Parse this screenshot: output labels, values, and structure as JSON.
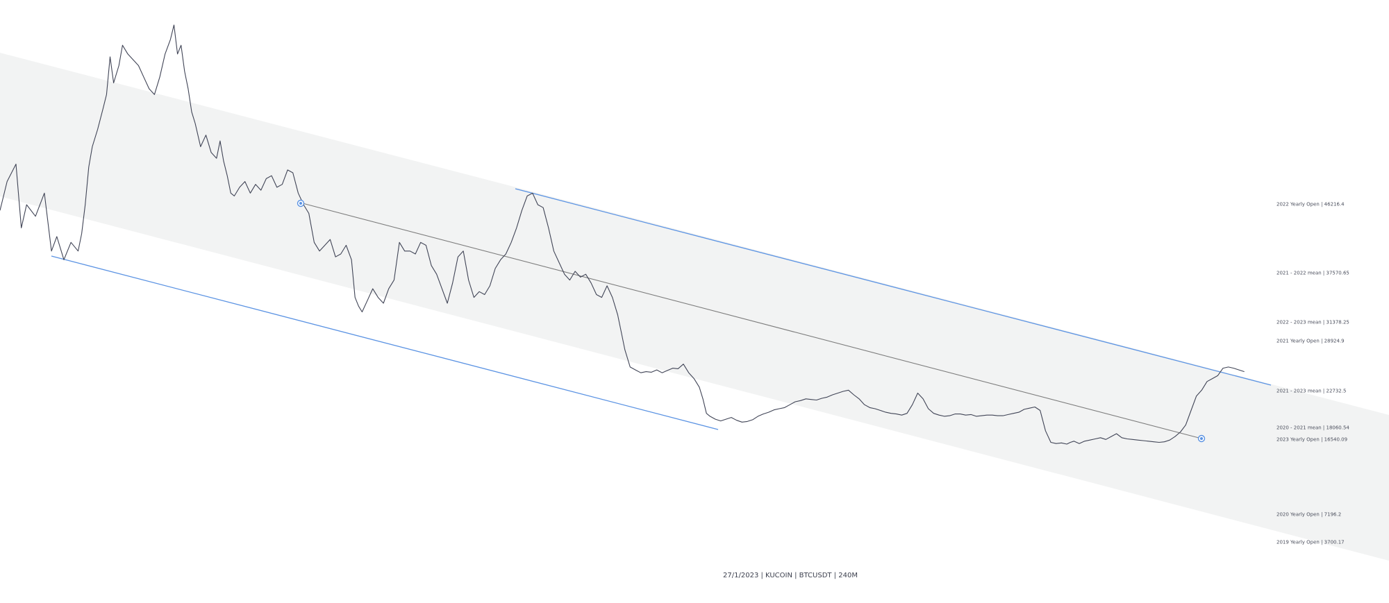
{
  "chart_data": {
    "type": "line",
    "symbol": "BTCUSDT",
    "exchange": "KUCOIN",
    "timeframe": "240M",
    "footer": "27/1/2023 | KUCOIN | BTCUSDT | 240M",
    "colors": {
      "price": "#3f4355",
      "channel_fill": "#f2f3f3",
      "channel_lines": "#5b93e3",
      "midline": "#7a7a7a",
      "marker": "#5b93e3",
      "label_text": "#4a4e5c"
    },
    "price_path_x": [
      0,
      8,
      18,
      24,
      30,
      40,
      50,
      58,
      64,
      72,
      80,
      88,
      92,
      96,
      100,
      104,
      110,
      116,
      120,
      124,
      128,
      134,
      138,
      144,
      150,
      156,
      162,
      168,
      174,
      180,
      186,
      192,
      196,
      200,
      204,
      208,
      212,
      216,
      220,
      226,
      232,
      238,
      244,
      248,
      252,
      256,
      260,
      264,
      270,
      276,
      282,
      288,
      294,
      300,
      306,
      312,
      318,
      324,
      330,
      336,
      342,
      348,
      354,
      360,
      366,
      372,
      378,
      384,
      390,
      396,
      400,
      404,
      408,
      414,
      420,
      426,
      432,
      438,
      444,
      450,
      456,
      462,
      468,
      474,
      480,
      486,
      492,
      498,
      504,
      510,
      516,
      522,
      528,
      534,
      540,
      546,
      552,
      558,
      564,
      570,
      576,
      582,
      588,
      594,
      600,
      606,
      612,
      618,
      624,
      630,
      636,
      642,
      648,
      654,
      660,
      666,
      672,
      678,
      684,
      690,
      696,
      700,
      704,
      710,
      716,
      722,
      728,
      734,
      740,
      746,
      752,
      758,
      764,
      770,
      776,
      782,
      788,
      792,
      796,
      800,
      806,
      812,
      818,
      824,
      830,
      836,
      842,
      848,
      854,
      860,
      866,
      872,
      878,
      884,
      890,
      896,
      902,
      908,
      914,
      920,
      926,
      932,
      938,
      944,
      950,
      956,
      962,
      968,
      974,
      980,
      986,
      992,
      998,
      1004,
      1010,
      1016,
      1022,
      1028,
      1034,
      1040,
      1046,
      1052,
      1058,
      1064,
      1070,
      1076,
      1082,
      1088,
      1094,
      1100,
      1106,
      1112,
      1118,
      1124,
      1130,
      1136,
      1142,
      1148,
      1154,
      1160,
      1166,
      1172,
      1178,
      1184,
      1190,
      1196,
      1202,
      1206,
      1210,
      1216,
      1222,
      1228,
      1234,
      1240,
      1246,
      1252,
      1258,
      1264,
      1270,
      1276,
      1282,
      1288,
      1294,
      1300,
      1306,
      1312,
      1318,
      1324,
      1330,
      1336,
      1342,
      1348,
      1354,
      1360,
      1366,
      1372,
      1378,
      1384,
      1390,
      1396,
      1402,
      1408,
      1412,
      1416,
      1420,
      1424,
      1428,
      1432
    ],
    "price_path_y": [
      37000,
      42000,
      45000,
      34000,
      38000,
      36000,
      40000,
      30000,
      32500,
      28500,
      31500,
      30000,
      33000,
      38000,
      44500,
      48000,
      51000,
      54500,
      57000,
      63500,
      59000,
      62000,
      65500,
      64000,
      63000,
      62000,
      60000,
      58000,
      57000,
      60000,
      64000,
      66500,
      69000,
      64000,
      65500,
      61000,
      58000,
      54000,
      52000,
      48000,
      50000,
      47000,
      46000,
      49000,
      45500,
      43000,
      40000,
      39500,
      41000,
      42000,
      40000,
      41500,
      40500,
      42500,
      43000,
      41000,
      41500,
      44000,
      43500,
      40000,
      38000,
      36500,
      31500,
      30000,
      31000,
      32000,
      29000,
      29500,
      31000,
      28500,
      22000,
      20500,
      19500,
      21500,
      23500,
      22000,
      21000,
      23500,
      25000,
      31500,
      30000,
      30000,
      29500,
      31500,
      31000,
      27500,
      26000,
      23500,
      21000,
      24500,
      29000,
      30000,
      25000,
      22000,
      23000,
      22500,
      24000,
      27000,
      28500,
      29500,
      31500,
      34000,
      37000,
      39500,
      40000,
      38000,
      37500,
      34000,
      30000,
      28000,
      26000,
      25000,
      26500,
      25500,
      26000,
      24500,
      22500,
      22000,
      24000,
      22000,
      19000,
      16000,
      13000,
      10000,
      9500,
      9000,
      9200,
      9100,
      9500,
      9000,
      9400,
      9800,
      9700,
      10500,
      9000,
      8000,
      6500,
      4500,
      2000,
      1500,
      1000,
      700,
      1000,
      1300,
      800,
      500,
      600,
      900,
      1500,
      1900,
      2200,
      2600,
      2800,
      3000,
      3500,
      4000,
      4200,
      4500,
      4400,
      4300,
      4600,
      4800,
      5200,
      5500,
      5800,
      6000,
      5200,
      4500,
      3500,
      3000,
      2800,
      2500,
      2200,
      2000,
      1900,
      1700,
      2000,
      3500,
      5500,
      4500,
      2800,
      2000,
      1700,
      1500,
      1600,
      1900,
      1900,
      1700,
      1800,
      1500,
      1600,
      1700,
      1700,
      1600,
      1600,
      1800,
      2000,
      2200,
      2700,
      2900,
      3100,
      2500,
      -1000,
      -3000,
      -3200,
      -3100,
      -3300,
      -3000,
      -2800,
      -3200,
      -2800,
      -2600,
      -2400,
      -2200,
      -2500,
      -2000,
      -1500,
      -2200,
      -2400,
      -2500,
      -2600,
      -2700,
      -2800,
      -2900,
      -3000,
      -2900,
      -2600,
      -2000,
      -1200,
      0,
      2500,
      5000,
      6000,
      7500,
      8000,
      8500,
      9800,
      10000,
      9800,
      9500,
      9200
    ],
    "horizontal_levels": [
      {
        "label": "2022 Yearly Open  |  46216.4",
        "value": 46216.4
      },
      {
        "label": "2021 - 2022 mean  |  37570.65",
        "value": 37570.65
      },
      {
        "label": "2022 - 2023 mean  |  31378.25",
        "value": 31378.25
      },
      {
        "label": "2021 Yearly Open  |  28924.9",
        "value": 28924.9
      },
      {
        "label": "2021 - 2023 mean  |  22732.5",
        "value": 22732.5
      },
      {
        "label": "2020 - 2021 mean  |  18060.54",
        "value": 18060.54
      },
      {
        "label": "2023 Yearly Open  |  16540.09",
        "value": 16540.09
      },
      {
        "label": "2020 Yearly Open  |  7196.2",
        "value": 7196.2
      },
      {
        "label": "2019 Yearly Open  |  3700.17",
        "value": 3700.17
      }
    ]
  }
}
